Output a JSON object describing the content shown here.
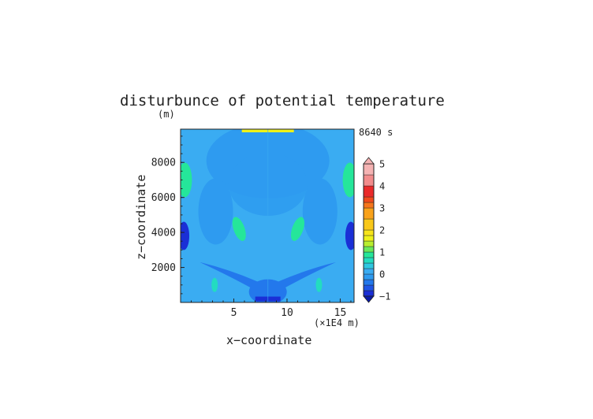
{
  "chart_data": {
    "type": "heatmap",
    "title": "disturbunce of potential temperature",
    "y_unit": "(m)",
    "time_label": "8640 s",
    "xlabel": "x−coordinate",
    "ylabel": "z−coordinate",
    "x_unit": "(×1E4 m)",
    "xlim": [
      0,
      16.3
    ],
    "ylim": [
      0,
      9900
    ],
    "x_ticks": [
      5,
      10,
      15
    ],
    "x_tick_labels": [
      "5",
      "10",
      "15"
    ],
    "y_ticks": [
      2000,
      4000,
      6000,
      8000
    ],
    "y_tick_labels": [
      "2000",
      "4000",
      "6000",
      "8000"
    ],
    "colorbar": {
      "min": -1,
      "max": 5,
      "ticks": [
        -1,
        0,
        1,
        2,
        3,
        4,
        5
      ],
      "tick_labels": [
        "−1",
        "0",
        "1",
        "2",
        "3",
        "4",
        "5"
      ],
      "levels": [
        {
          "lo": -1.0,
          "color": "#1a2fd6"
        },
        {
          "lo": -0.75,
          "color": "#1f55e6"
        },
        {
          "lo": -0.5,
          "color": "#2378ec"
        },
        {
          "lo": -0.25,
          "color": "#2e9bf0"
        },
        {
          "lo": 0.0,
          "color": "#3aacf2"
        },
        {
          "lo": 0.25,
          "color": "#2fc7e0"
        },
        {
          "lo": 0.5,
          "color": "#23dcc0"
        },
        {
          "lo": 0.75,
          "color": "#25e69a"
        },
        {
          "lo": 1.0,
          "color": "#6ae85a"
        },
        {
          "lo": 1.25,
          "color": "#b8ee2e"
        },
        {
          "lo": 1.5,
          "color": "#eef21a"
        },
        {
          "lo": 1.75,
          "color": "#f7e41a"
        },
        {
          "lo": 2.0,
          "color": "#f9c81a"
        },
        {
          "lo": 2.5,
          "color": "#f9a21a"
        },
        {
          "lo": 3.0,
          "color": "#f6761c"
        },
        {
          "lo": 3.25,
          "color": "#f14a1c"
        },
        {
          "lo": 3.5,
          "color": "#ea2a2a"
        },
        {
          "lo": 4.0,
          "color": "#f28c8c"
        },
        {
          "lo": 4.5,
          "color": "#f5b3b3"
        }
      ]
    },
    "field": {
      "background_level": 0.05,
      "features": [
        {
          "name": "top-warm-band",
          "x": 8.2,
          "z": 9850,
          "value": 1.6
        },
        {
          "name": "upper-dome",
          "x": 8.2,
          "z": 8100,
          "value": -0.1
        },
        {
          "name": "mid-left-warm",
          "x": 5.5,
          "z": 4200,
          "value": 0.9
        },
        {
          "name": "mid-right-warm",
          "x": 11.0,
          "z": 4200,
          "value": 0.9
        },
        {
          "name": "left-edge-warm",
          "x": 0.4,
          "z": 7000,
          "value": 0.9
        },
        {
          "name": "right-edge-warm",
          "x": 15.9,
          "z": 7000,
          "value": 0.9
        },
        {
          "name": "left-edge-cold",
          "x": 0.3,
          "z": 3800,
          "value": -0.9
        },
        {
          "name": "right-edge-cold",
          "x": 16.0,
          "z": 3800,
          "value": -0.9
        },
        {
          "name": "bottom-center-cold",
          "x": 8.2,
          "z": 200,
          "value": -1.0
        },
        {
          "name": "low-left-warm",
          "x": 3.2,
          "z": 1000,
          "value": 0.7
        },
        {
          "name": "low-right-warm",
          "x": 13.0,
          "z": 1000,
          "value": 0.7
        }
      ]
    }
  }
}
